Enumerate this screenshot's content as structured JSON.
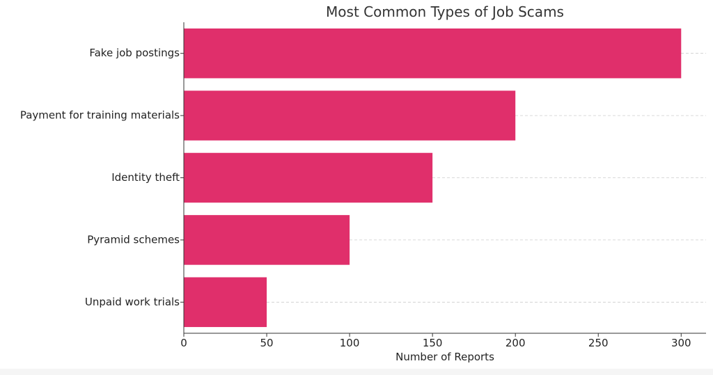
{
  "chart_data": {
    "type": "bar",
    "orientation": "horizontal",
    "title": "Most Common Types of Job Scams",
    "xlabel": "Number of Reports",
    "ylabel": "",
    "categories": [
      "Fake job postings",
      "Payment for training materials",
      "Identity theft",
      "Pyramid schemes",
      "Unpaid work trials"
    ],
    "values": [
      300,
      200,
      150,
      100,
      50
    ],
    "xlim": [
      0,
      315
    ],
    "xticks": [
      "0",
      "50",
      "100",
      "150",
      "200",
      "250",
      "300"
    ],
    "bar_color": "#e02f6b",
    "grid": "horizontal dashed",
    "legend": "none"
  }
}
